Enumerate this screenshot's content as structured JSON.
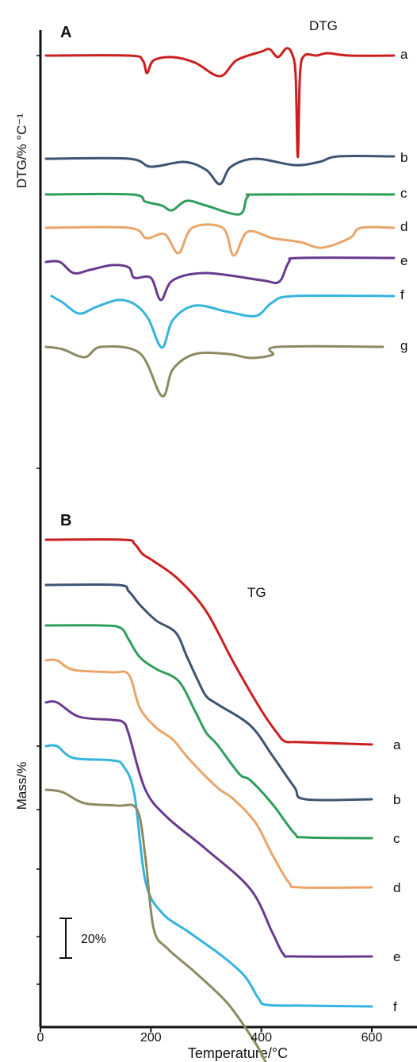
{
  "colors": {
    "a": "#cc1f1f",
    "b": "#3e5472",
    "c": "#2e9e5a",
    "d": "#e9a56a",
    "e": "#6a3a8e",
    "f": "#35b4de",
    "g": "#8d8a62",
    "axis": "#111111"
  },
  "chart_data": [
    {
      "type": "line",
      "panel_label": "A",
      "title": "DTG",
      "ylabel": "DTG/% °C⁻¹",
      "xlim": [
        0,
        620
      ],
      "series": [
        {
          "name": "a",
          "offset": 70,
          "points": [
            [
              10,
              0
            ],
            [
              160,
              0
            ],
            [
              185,
              6
            ],
            [
              193,
              22
            ],
            [
              205,
              6
            ],
            [
              240,
              2
            ],
            [
              280,
              9
            ],
            [
              325,
              26
            ],
            [
              355,
              6
            ],
            [
              400,
              -5
            ],
            [
              415,
              -8
            ],
            [
              430,
              2
            ],
            [
              445,
              -9
            ],
            [
              455,
              -3
            ],
            [
              462,
              24
            ],
            [
              466,
              128
            ],
            [
              470,
              24
            ],
            [
              478,
              0
            ],
            [
              500,
              0
            ],
            [
              520,
              -3
            ],
            [
              560,
              0
            ],
            [
              640,
              0
            ]
          ]
        },
        {
          "name": "b",
          "offset": 200,
          "points": [
            [
              10,
              0
            ],
            [
              160,
              0
            ],
            [
              200,
              10
            ],
            [
              260,
              4
            ],
            [
              300,
              14
            ],
            [
              325,
              32
            ],
            [
              345,
              10
            ],
            [
              390,
              0
            ],
            [
              460,
              8
            ],
            [
              505,
              4
            ],
            [
              540,
              -3
            ],
            [
              640,
              -3
            ]
          ]
        },
        {
          "name": "c",
          "offset": 245,
          "points": [
            [
              10,
              0
            ],
            [
              165,
              0
            ],
            [
              190,
              9
            ],
            [
              220,
              14
            ],
            [
              238,
              20
            ],
            [
              265,
              8
            ],
            [
              300,
              14
            ],
            [
              360,
              25
            ],
            [
              375,
              3
            ],
            [
              400,
              0
            ],
            [
              640,
              0
            ]
          ]
        },
        {
          "name": "d",
          "offset": 287,
          "points": [
            [
              10,
              0
            ],
            [
              160,
              0
            ],
            [
              192,
              13
            ],
            [
              225,
              8
            ],
            [
              250,
              32
            ],
            [
              275,
              0
            ],
            [
              330,
              0
            ],
            [
              350,
              35
            ],
            [
              375,
              5
            ],
            [
              420,
              13
            ],
            [
              470,
              18
            ],
            [
              510,
              25
            ],
            [
              560,
              13
            ],
            [
              580,
              0
            ],
            [
              640,
              0
            ]
          ]
        },
        {
          "name": "e",
          "offset": 330,
          "points": [
            [
              10,
              0
            ],
            [
              35,
              0
            ],
            [
              60,
              14
            ],
            [
              90,
              10
            ],
            [
              130,
              4
            ],
            [
              160,
              7
            ],
            [
              170,
              20
            ],
            [
              200,
              20
            ],
            [
              218,
              48
            ],
            [
              240,
              23
            ],
            [
              300,
              14
            ],
            [
              400,
              23
            ],
            [
              432,
              25
            ],
            [
              450,
              0
            ],
            [
              470,
              -5
            ],
            [
              640,
              -5
            ]
          ]
        },
        {
          "name": "f",
          "offset": 373,
          "points": [
            [
              20,
              0
            ],
            [
              40,
              8
            ],
            [
              70,
              22
            ],
            [
              100,
              14
            ],
            [
              140,
              5
            ],
            [
              170,
              10
            ],
            [
              195,
              28
            ],
            [
              220,
              65
            ],
            [
              240,
              30
            ],
            [
              280,
              12
            ],
            [
              340,
              20
            ],
            [
              390,
              25
            ],
            [
              420,
              8
            ],
            [
              460,
              0
            ],
            [
              640,
              0
            ]
          ]
        },
        {
          "name": "g",
          "offset": 437,
          "points": [
            [
              10,
              0
            ],
            [
              40,
              3
            ],
            [
              80,
              13
            ],
            [
              110,
              0
            ],
            [
              180,
              8
            ],
            [
              220,
              62
            ],
            [
              240,
              28
            ],
            [
              280,
              9
            ],
            [
              340,
              9
            ],
            [
              380,
              14
            ],
            [
              420,
              10
            ],
            [
              430,
              0
            ],
            [
              620,
              0
            ]
          ]
        }
      ]
    },
    {
      "type": "line",
      "panel_label": "B",
      "title": "TG",
      "ylabel": "Mass/%",
      "xlabel": "Temperature/°C",
      "xlim": [
        0,
        620
      ],
      "x_ticks": [
        0,
        200,
        400,
        600
      ],
      "scale_bar": "20%",
      "series": [
        {
          "name": "a",
          "offset": 680,
          "points": [
            [
              10,
              0
            ],
            [
              150,
              0
            ],
            [
              170,
              5
            ],
            [
              185,
              18
            ],
            [
              205,
              27
            ],
            [
              250,
              50
            ],
            [
              300,
              90
            ],
            [
              350,
              155
            ],
            [
              400,
              215
            ],
            [
              430,
              245
            ],
            [
              440,
              253
            ],
            [
              450,
              255
            ],
            [
              470,
              255
            ],
            [
              600,
              258
            ]
          ]
        },
        {
          "name": "b",
          "offset": 737,
          "points": [
            [
              10,
              0
            ],
            [
              140,
              0
            ],
            [
              160,
              8
            ],
            [
              180,
              25
            ],
            [
              210,
              45
            ],
            [
              245,
              60
            ],
            [
              265,
              90
            ],
            [
              285,
              120
            ],
            [
              300,
              140
            ],
            [
              320,
              150
            ],
            [
              380,
              177
            ],
            [
              420,
              215
            ],
            [
              460,
              255
            ],
            [
              480,
              270
            ],
            [
              600,
              270
            ]
          ]
        },
        {
          "name": "c",
          "offset": 788,
          "points": [
            [
              10,
              0
            ],
            [
              110,
              0
            ],
            [
              145,
              3
            ],
            [
              160,
              18
            ],
            [
              180,
              40
            ],
            [
              210,
              55
            ],
            [
              250,
              70
            ],
            [
              280,
              108
            ],
            [
              300,
              135
            ],
            [
              320,
              150
            ],
            [
              360,
              187
            ],
            [
              380,
              195
            ],
            [
              420,
              225
            ],
            [
              460,
              262
            ],
            [
              480,
              267
            ],
            [
              600,
              268
            ]
          ]
        },
        {
          "name": "d",
          "offset": 832,
          "points": [
            [
              10,
              0
            ],
            [
              30,
              0
            ],
            [
              60,
              12
            ],
            [
              130,
              15
            ],
            [
              160,
              18
            ],
            [
              180,
              60
            ],
            [
              210,
              85
            ],
            [
              240,
              100
            ],
            [
              270,
              125
            ],
            [
              320,
              160
            ],
            [
              350,
              175
            ],
            [
              390,
              205
            ],
            [
              420,
              245
            ],
            [
              450,
              280
            ],
            [
              470,
              286
            ],
            [
              600,
              286
            ]
          ]
        },
        {
          "name": "e",
          "offset": 885,
          "points": [
            [
              10,
              0
            ],
            [
              30,
              0
            ],
            [
              70,
              18
            ],
            [
              130,
              22
            ],
            [
              150,
              25
            ],
            [
              160,
              40
            ],
            [
              190,
              110
            ],
            [
              230,
              145
            ],
            [
              300,
              185
            ],
            [
              380,
              235
            ],
            [
              420,
              290
            ],
            [
              440,
              317
            ],
            [
              460,
              320
            ],
            [
              600,
              320
            ]
          ]
        },
        {
          "name": "f",
          "offset": 940,
          "points": [
            [
              10,
              0
            ],
            [
              30,
              0
            ],
            [
              60,
              15
            ],
            [
              130,
              18
            ],
            [
              150,
              25
            ],
            [
              170,
              60
            ],
            [
              190,
              170
            ],
            [
              220,
              210
            ],
            [
              270,
              235
            ],
            [
              330,
              265
            ],
            [
              370,
              290
            ],
            [
              395,
              318
            ],
            [
              410,
              326
            ],
            [
              480,
              327
            ],
            [
              600,
              328
            ]
          ]
        },
        {
          "name": "g",
          "offset": 995,
          "points": [
            [
              10,
              0
            ],
            [
              40,
              3
            ],
            [
              80,
              17
            ],
            [
              140,
              20
            ],
            [
              175,
              25
            ],
            [
              190,
              85
            ],
            [
              205,
              175
            ],
            [
              230,
              200
            ],
            [
              280,
              230
            ],
            [
              340,
              270
            ],
            [
              390,
              320
            ],
            [
              410,
              345
            ],
            [
              430,
              355
            ],
            [
              480,
              355
            ],
            [
              610,
              360
            ]
          ]
        }
      ]
    }
  ]
}
